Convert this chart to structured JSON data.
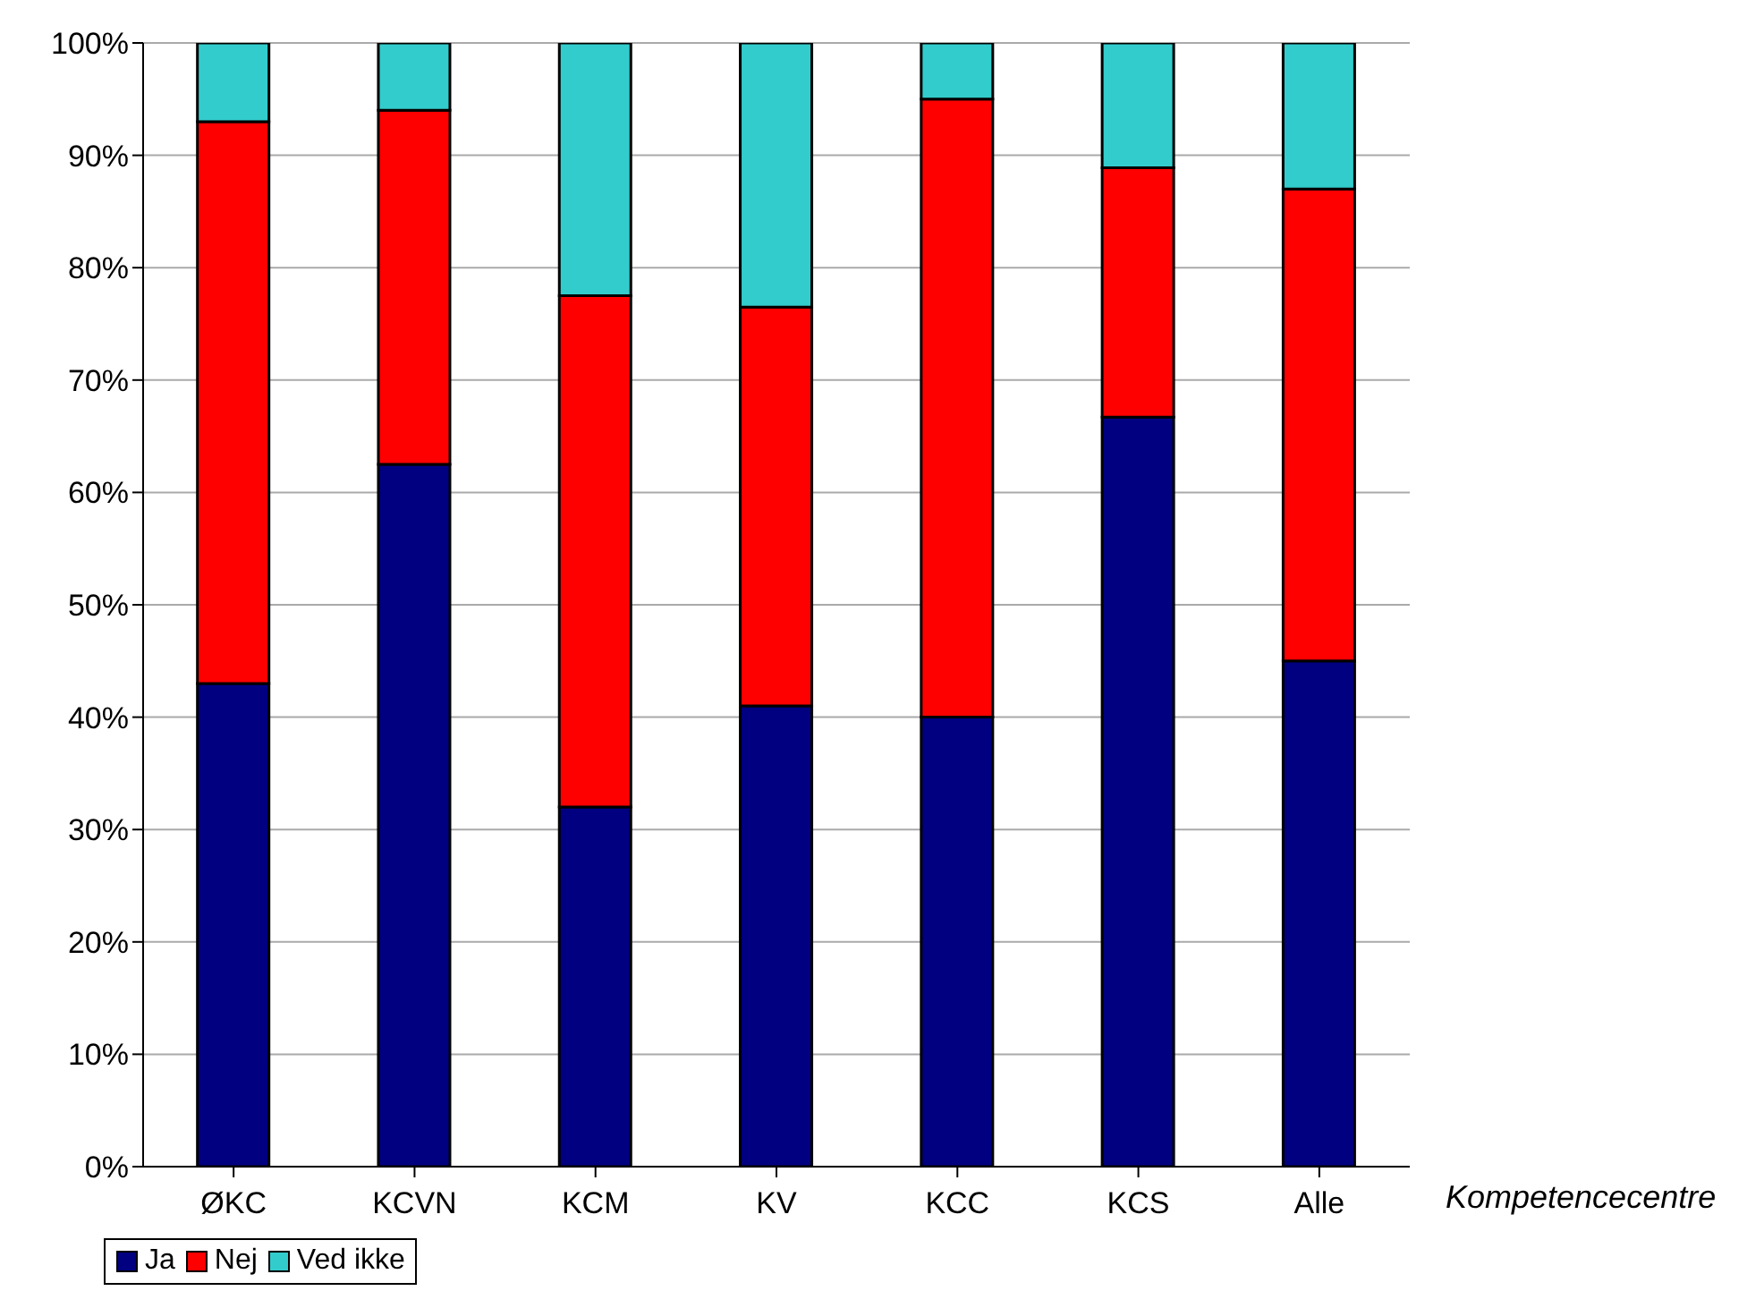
{
  "chart_data": {
    "type": "bar",
    "stacked": true,
    "xlabel": "Kompetencecentre",
    "categories": [
      "ØKC",
      "KCVN",
      "KCM",
      "KV",
      "KCC",
      "KCS",
      "Alle"
    ],
    "series": [
      {
        "name": "Ja",
        "color": "#000080",
        "values": [
          43,
          62.5,
          32,
          41,
          40,
          66.7,
          45
        ]
      },
      {
        "name": "Nej",
        "color": "#ff0000",
        "values": [
          50,
          31.5,
          45.5,
          35.5,
          55,
          22.2,
          42
        ]
      },
      {
        "name": "Ved ikke",
        "color": "#33cccc",
        "values": [
          7,
          6,
          22.5,
          23.5,
          5,
          11.1,
          13
        ]
      }
    ],
    "ylim": [
      0,
      100
    ],
    "yticks": [
      {
        "value": 0,
        "label": "0%"
      },
      {
        "value": 10,
        "label": "10%"
      },
      {
        "value": 20,
        "label": "20%"
      },
      {
        "value": 30,
        "label": "30%"
      },
      {
        "value": 40,
        "label": "40%"
      },
      {
        "value": 50,
        "label": "50%"
      },
      {
        "value": 60,
        "label": "60%"
      },
      {
        "value": 70,
        "label": "70%"
      },
      {
        "value": 80,
        "label": "80%"
      },
      {
        "value": 90,
        "label": "90%"
      },
      {
        "value": 100,
        "label": "100%"
      }
    ],
    "grid": "y",
    "legend": "bottom"
  }
}
